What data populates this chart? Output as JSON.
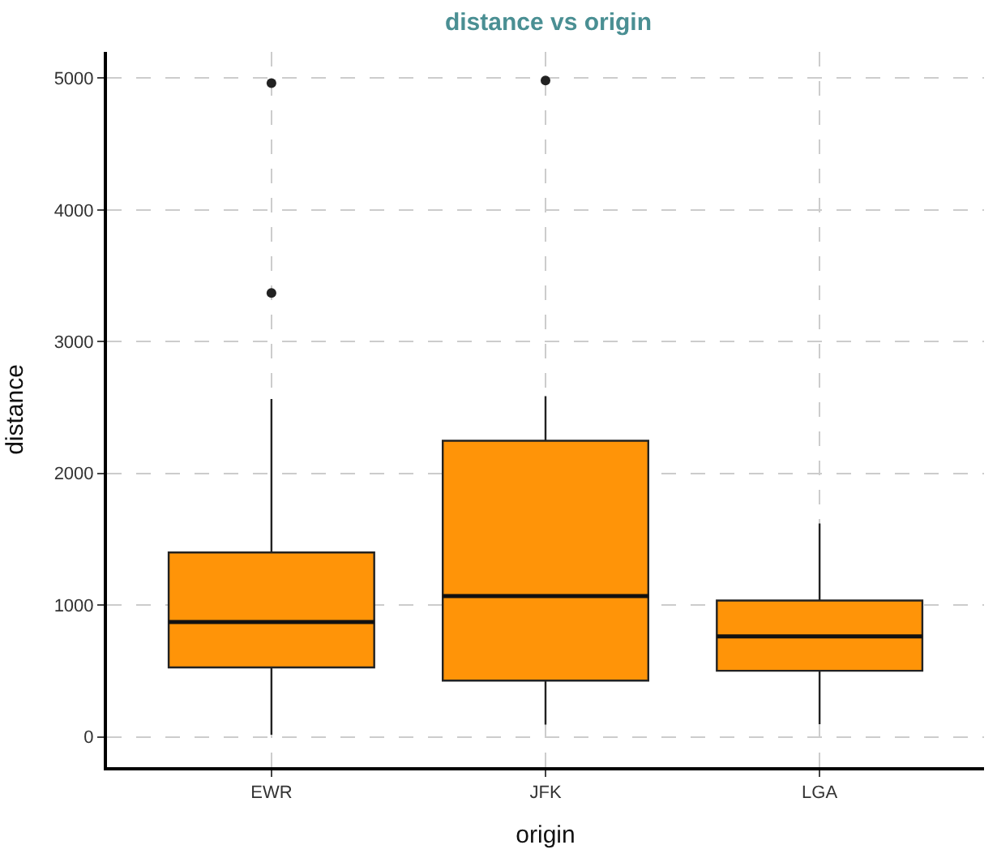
{
  "chart_data": {
    "type": "box",
    "title": "distance vs origin",
    "xlabel": "origin",
    "ylabel": "distance",
    "categories": [
      "EWR",
      "JFK",
      "LGA"
    ],
    "boxes": [
      {
        "low": 17,
        "q1": 527,
        "median": 872,
        "q3": 1400,
        "high": 2565,
        "outliers": [
          3370,
          4963
        ]
      },
      {
        "low": 94,
        "q1": 427,
        "median": 1069,
        "q3": 2248,
        "high": 2586,
        "outliers": [
          4983
        ]
      },
      {
        "low": 96,
        "q1": 502,
        "median": 762,
        "q3": 1035,
        "high": 1620
      }
    ],
    "color": "#ff9408",
    "ylim": [
      -230,
      5200
    ],
    "yticks": [
      0,
      1000,
      2000,
      3000,
      4000,
      5000
    ],
    "grid": true,
    "line_style": "dashed"
  }
}
